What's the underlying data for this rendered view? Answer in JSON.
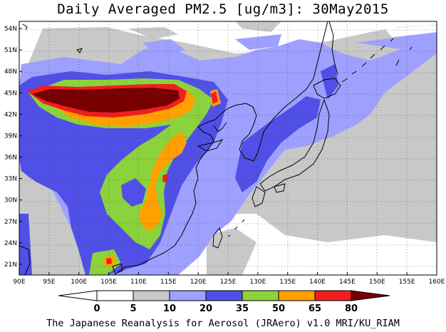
{
  "title": "Daily Averaged PM2.5 [ug/m3]: 30May2015",
  "credit": "The Japanese Reanalysis for Aerosol (JRAero) v1.0 MRI/KU_RIAM",
  "map": {
    "lon_range": [
      90,
      160
    ],
    "lat_range": [
      19.5,
      55
    ],
    "lon_ticks": [
      "90E",
      "95E",
      "100E",
      "105E",
      "110E",
      "115E",
      "120E",
      "125E",
      "130E",
      "135E",
      "140E",
      "145E",
      "150E",
      "155E",
      "160E"
    ],
    "lat_ticks": [
      "21N",
      "24N",
      "27N",
      "30N",
      "33N",
      "36N",
      "39N",
      "42N",
      "45N",
      "48N",
      "51N",
      "54N"
    ]
  },
  "legend": {
    "labels": [
      "0",
      "5",
      "10",
      "20",
      "35",
      "50",
      "65",
      "80"
    ],
    "colors": [
      "#ffffff",
      "#c8c8c8",
      "#9ea0ff",
      "#5050e6",
      "#8cd23c",
      "#ffa000",
      "#f01e1e",
      "#780000"
    ]
  }
}
